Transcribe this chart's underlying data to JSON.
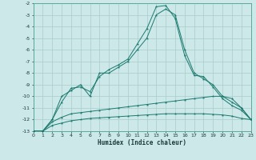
{
  "xlabel": "Humidex (Indice chaleur)",
  "xlim": [
    0,
    23
  ],
  "ylim": [
    -13,
    -2
  ],
  "yticks": [
    -13,
    -12,
    -11,
    -10,
    -9,
    -8,
    -7,
    -6,
    -5,
    -4,
    -3,
    -2
  ],
  "xticks": [
    0,
    1,
    2,
    3,
    4,
    5,
    6,
    7,
    8,
    9,
    10,
    11,
    12,
    13,
    14,
    15,
    16,
    17,
    18,
    19,
    20,
    21,
    22,
    23
  ],
  "background_color": "#cce8e8",
  "line_color": "#1a7a6e",
  "grid_color": "#aacccc",
  "line1": [
    -13,
    -13,
    -12,
    -10,
    -9.5,
    -9,
    -10,
    -8,
    -8,
    -7.5,
    -7,
    -6,
    -5,
    -3,
    -2.5,
    -3,
    -6,
    -8,
    -8.5,
    -9,
    -10,
    -10.5,
    -11,
    -12
  ],
  "line2": [
    -13,
    -13,
    -12,
    -10.5,
    -9.3,
    -9.2,
    -9.6,
    -8.3,
    -7.7,
    -7.3,
    -6.8,
    -5.5,
    -4.2,
    -2.3,
    -2.2,
    -3.3,
    -6.5,
    -8.2,
    -8.3,
    -9.2,
    -10.2,
    -10.8,
    -11.2,
    -12
  ],
  "line3": [
    -13,
    -13,
    -12.2,
    -11.8,
    -11.5,
    -11.4,
    -11.3,
    -11.2,
    -11.1,
    -11.0,
    -10.9,
    -10.8,
    -10.7,
    -10.6,
    -10.5,
    -10.4,
    -10.3,
    -10.2,
    -10.1,
    -10.0,
    -10.0,
    -10.2,
    -11.0,
    -12
  ],
  "line4": [
    -13,
    -13,
    -12.5,
    -12.3,
    -12.1,
    -12.0,
    -11.9,
    -11.85,
    -11.8,
    -11.75,
    -11.7,
    -11.65,
    -11.6,
    -11.55,
    -11.5,
    -11.5,
    -11.5,
    -11.5,
    -11.5,
    -11.55,
    -11.6,
    -11.7,
    -11.9,
    -12
  ]
}
